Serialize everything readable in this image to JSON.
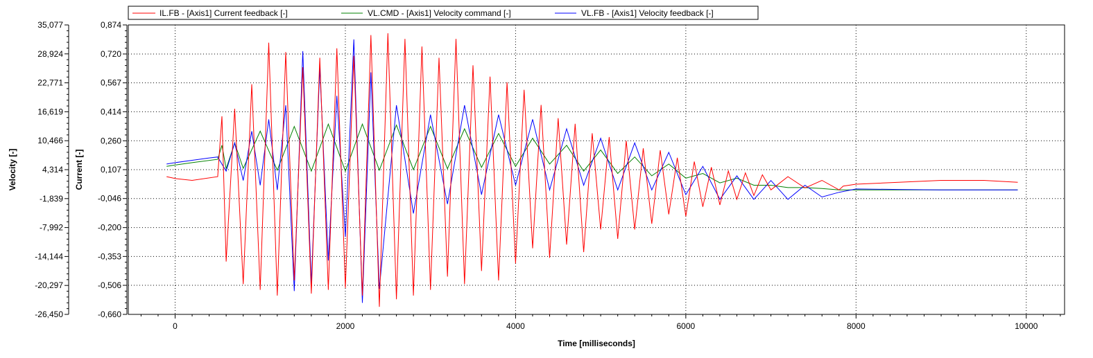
{
  "chart_data": {
    "type": "line",
    "title": "",
    "xlabel": "Time [milliseconds]",
    "ylabel_left_outer": "Velocity [-]",
    "ylabel_left_inner": "Current [-]",
    "xlim": [
      -550,
      10450
    ],
    "x_ticks": [
      0,
      2000,
      4000,
      6000,
      8000,
      10000
    ],
    "x_tick_labels": [
      "0",
      "2000",
      "4000",
      "6000",
      "8000",
      "10000"
    ],
    "current_axis": {
      "ylim": [
        -0.66,
        0.874
      ],
      "ticks": [
        0.874,
        0.72,
        0.567,
        0.414,
        0.26,
        0.107,
        -0.046,
        -0.2,
        -0.353,
        -0.506,
        -0.66
      ],
      "tick_labels": [
        "0,874",
        "0,720",
        "0,567",
        "0,414",
        "0,260",
        "0,107",
        "-0,046",
        "-0,200",
        "-0,353",
        "-0,506",
        "-0,660"
      ]
    },
    "velocity_axis": {
      "ylim": [
        -26.45,
        35.077
      ],
      "ticks": [
        35.077,
        28.924,
        22.771,
        16.619,
        10.466,
        4.314,
        -1.839,
        -7.992,
        -14.144,
        -20.297,
        -26.45
      ],
      "tick_labels": [
        "35,077",
        "28,924",
        "22,771",
        "16,619",
        "10,466",
        "4,314",
        "-1,839",
        "-7,992",
        "-14,144",
        "-20,297",
        "-26,450"
      ]
    },
    "grid": true,
    "legend_position": "top",
    "series": [
      {
        "name": "IL.FB - [Axis1] Current feedback [-]",
        "axis": "current",
        "color": "#ff0000",
        "x": [
          -100,
          0,
          200,
          500,
          550,
          600,
          700,
          800,
          900,
          1000,
          1100,
          1200,
          1300,
          1400,
          1500,
          1600,
          1700,
          1800,
          1900,
          2000,
          2100,
          2200,
          2300,
          2400,
          2500,
          2600,
          2700,
          2800,
          2900,
          3000,
          3100,
          3200,
          3300,
          3400,
          3500,
          3600,
          3700,
          3800,
          3900,
          4000,
          4100,
          4200,
          4300,
          4400,
          4500,
          4600,
          4700,
          4800,
          4900,
          5000,
          5100,
          5200,
          5300,
          5400,
          5500,
          5600,
          5700,
          5800,
          5900,
          6000,
          6100,
          6200,
          6300,
          6400,
          6500,
          6600,
          6700,
          6800,
          6900,
          7000,
          7200,
          7400,
          7600,
          7800,
          7850,
          8000,
          8500,
          9000,
          9500,
          9900
        ],
        "y": [
          0.07,
          0.06,
          0.05,
          0.07,
          0.39,
          -0.38,
          0.43,
          -0.5,
          0.56,
          -0.53,
          0.78,
          -0.56,
          0.73,
          -0.48,
          0.65,
          -0.55,
          0.7,
          -0.53,
          0.75,
          -0.52,
          0.71,
          -0.56,
          0.82,
          -0.62,
          0.83,
          -0.58,
          0.8,
          -0.56,
          0.76,
          -0.53,
          0.7,
          -0.46,
          0.8,
          -0.5,
          0.66,
          -0.43,
          0.6,
          -0.48,
          0.57,
          -0.39,
          0.53,
          -0.31,
          0.45,
          -0.36,
          0.38,
          -0.29,
          0.35,
          -0.33,
          0.3,
          -0.21,
          0.28,
          -0.26,
          0.26,
          -0.21,
          0.22,
          -0.18,
          0.21,
          -0.13,
          0.17,
          -0.14,
          0.15,
          -0.09,
          0.12,
          -0.08,
          0.1,
          -0.05,
          0.09,
          -0.03,
          0.08,
          0.0,
          0.07,
          0.01,
          0.05,
          0.0,
          0.02,
          0.03,
          0.04,
          0.05,
          0.05,
          0.04
        ]
      },
      {
        "name": "VL.CMD - [Axis1] Velocity command [-]",
        "axis": "velocity",
        "color": "#008000",
        "x": [
          -100,
          0,
          200,
          500,
          550,
          600,
          700,
          800,
          1000,
          1200,
          1400,
          1600,
          1800,
          2000,
          2200,
          2400,
          2600,
          2800,
          3000,
          3200,
          3400,
          3600,
          3800,
          4000,
          4200,
          4400,
          4600,
          4800,
          5000,
          5200,
          5400,
          5600,
          5800,
          6000,
          6200,
          6400,
          6600,
          6800,
          7000,
          7200,
          7400,
          7600,
          7800,
          8000,
          8500,
          9000,
          9500,
          9900
        ],
        "y": [
          5.0,
          5.3,
          5.8,
          6.5,
          9.5,
          4.5,
          10.0,
          4.6,
          12.5,
          4.2,
          13.5,
          4.0,
          14.0,
          4.0,
          14.0,
          4.2,
          13.8,
          4.3,
          13.5,
          4.5,
          13.0,
          4.8,
          12.0,
          5.0,
          11.0,
          5.5,
          9.5,
          4.0,
          8.5,
          3.5,
          7.0,
          3.0,
          5.5,
          2.5,
          3.5,
          1.5,
          2.5,
          1.0,
          1.0,
          0.5,
          0.5,
          0.3,
          0.0,
          0.0,
          0.0,
          0.0,
          0.0,
          0.0
        ]
      },
      {
        "name": "VL.FB - [Axis1] Velocity feedback [-]",
        "axis": "velocity",
        "color": "#0000ff",
        "x": [
          -100,
          0,
          200,
          400,
          500,
          600,
          700,
          800,
          900,
          1000,
          1100,
          1200,
          1300,
          1400,
          1500,
          1600,
          1700,
          1800,
          1900,
          2000,
          2100,
          2200,
          2300,
          2400,
          2600,
          2800,
          3000,
          3200,
          3400,
          3600,
          3800,
          4000,
          4200,
          4400,
          4600,
          4800,
          5000,
          5200,
          5400,
          5600,
          5800,
          6000,
          6200,
          6400,
          6600,
          6800,
          7000,
          7200,
          7400,
          7600,
          7800,
          8000,
          8500,
          9000,
          9500,
          9900
        ],
        "y": [
          5.5,
          5.8,
          6.3,
          6.8,
          7.0,
          4.0,
          10.0,
          2.0,
          12.5,
          1.0,
          15.0,
          0.0,
          18.0,
          -21.5,
          29.5,
          -20.0,
          26.0,
          -15.0,
          20.0,
          -10.0,
          32.0,
          -24.0,
          25.0,
          -21.0,
          18.0,
          -5.0,
          16.0,
          -3.0,
          18.0,
          -1.0,
          16.0,
          1.0,
          15.0,
          0.0,
          13.0,
          1.0,
          11.0,
          0.0,
          10.0,
          0.0,
          8.0,
          -1.0,
          5.0,
          -2.0,
          3.0,
          -2.0,
          2.0,
          -2.0,
          1.0,
          -1.5,
          -0.5,
          0.2,
          0.1,
          0.0,
          0.0,
          0.0
        ]
      }
    ]
  }
}
